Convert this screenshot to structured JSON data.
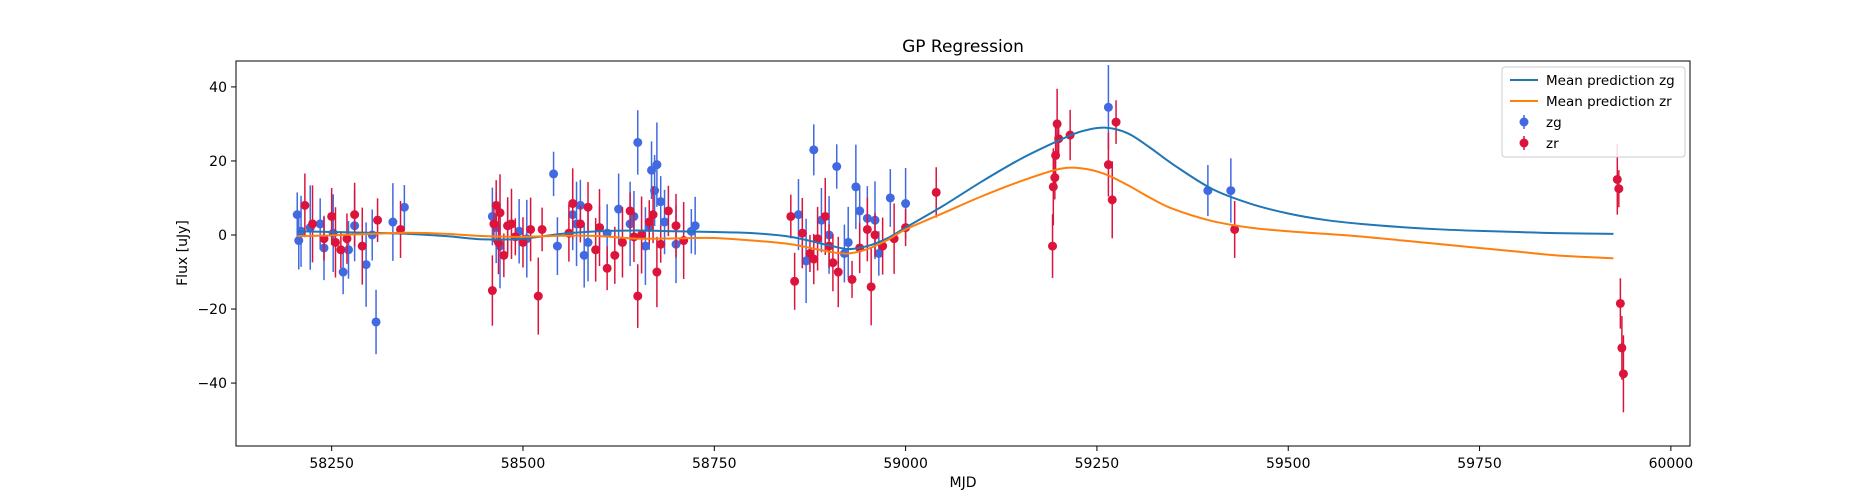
{
  "chart_data": {
    "type": "scatter",
    "title": "GP Regression",
    "xlabel": "MJD",
    "ylabel": "Flux [uJy]",
    "xlim": [
      58125,
      60025
    ],
    "ylim": [
      -57,
      47
    ],
    "xticks": [
      58250,
      58500,
      58750,
      59000,
      59250,
      59500,
      59750,
      60000
    ],
    "yticks": [
      -40,
      -20,
      0,
      20,
      40
    ],
    "grid": false,
    "legend_position": "top-right",
    "colors": {
      "zg_line": "#1f77b4",
      "zr_line": "#ff7f0e",
      "zg_points": "#4169e1",
      "zr_points": "#dc143c"
    },
    "legend": [
      "Mean prediction zg",
      "Mean prediction zr",
      "zg",
      "zr"
    ],
    "lines": [
      {
        "name": "Mean prediction zg",
        "color": "#1f77b4",
        "x": [
          58205,
          58250,
          58300,
          58350,
          58400,
          58450,
          58500,
          58550,
          58600,
          58650,
          58700,
          58750,
          58800,
          58850,
          58900,
          58925,
          58950,
          58975,
          59000,
          59050,
          59100,
          59150,
          59200,
          59230,
          59260,
          59290,
          59320,
          59350,
          59400,
          59450,
          59500,
          59550,
          59600,
          59650,
          59700,
          59750,
          59800,
          59850,
          59925
        ],
        "y": [
          1.0,
          0.8,
          0.6,
          0.3,
          -0.3,
          -1.2,
          -1.0,
          0.3,
          1.0,
          1.2,
          1.0,
          0.8,
          0.5,
          -0.5,
          -2.8,
          -3.8,
          -3.0,
          -1.0,
          2.0,
          8.0,
          14.5,
          20.5,
          25.5,
          28.0,
          29.0,
          27.5,
          23.5,
          19.0,
          12.5,
          8.5,
          5.8,
          4.0,
          2.9,
          2.1,
          1.5,
          1.1,
          0.8,
          0.5,
          0.3
        ]
      },
      {
        "name": "Mean prediction zr",
        "color": "#ff7f0e",
        "x": [
          58205,
          58250,
          58300,
          58350,
          58400,
          58450,
          58500,
          58550,
          58600,
          58650,
          58700,
          58750,
          58800,
          58850,
          58900,
          58925,
          58950,
          58975,
          59000,
          59050,
          59100,
          59150,
          59200,
          59230,
          59260,
          59290,
          59320,
          59350,
          59400,
          59450,
          59500,
          59550,
          59600,
          59650,
          59700,
          59750,
          59800,
          59850,
          59925
        ],
        "y": [
          -0.3,
          -0.1,
          0.3,
          0.6,
          0.3,
          -0.3,
          -0.5,
          -0.2,
          -0.3,
          -1.0,
          -0.9,
          -0.8,
          -1.5,
          -2.5,
          -4.5,
          -5.0,
          -3.8,
          -1.5,
          1.5,
          6.0,
          10.5,
          14.5,
          17.8,
          18.0,
          16.5,
          13.5,
          10.0,
          7.0,
          3.8,
          2.0,
          1.0,
          0.3,
          -0.5,
          -1.5,
          -2.5,
          -3.5,
          -4.5,
          -5.5,
          -6.3
        ]
      }
    ],
    "series": [
      {
        "name": "zg",
        "color": "#4169e1",
        "x": [
          58205,
          58207,
          58210,
          58222,
          58235,
          58240,
          58252,
          58265,
          58272,
          58280,
          58295,
          58303,
          58308,
          58330,
          58345,
          58460,
          58465,
          58470,
          58480,
          58495,
          58505,
          58540,
          58545,
          58565,
          58570,
          58575,
          58580,
          58585,
          58600,
          58610,
          58625,
          58640,
          58645,
          58650,
          58660,
          58665,
          58668,
          58672,
          58675,
          58680,
          58685,
          58700,
          58720,
          58725,
          58860,
          58870,
          58880,
          58890,
          58900,
          58910,
          58920,
          58925,
          58935,
          58940,
          58950,
          58960,
          58965,
          58980,
          59000,
          59265,
          59395,
          59425
        ],
        "y": [
          5.5,
          -1.5,
          1.0,
          2.0,
          3.0,
          -3.5,
          0.5,
          -10.0,
          -4.0,
          2.5,
          -8.0,
          0.0,
          -23.5,
          3.5,
          7.5,
          5.0,
          2.0,
          -3.0,
          2.5,
          1.0,
          -1.0,
          16.5,
          -3.0,
          5.5,
          3.0,
          8.0,
          -5.5,
          -2.0,
          2.0,
          0.5,
          7.0,
          3.0,
          5.0,
          25.0,
          -3.0,
          2.0,
          17.5,
          12.0,
          19.0,
          9.0,
          3.5,
          -2.5,
          1.0,
          2.5,
          5.5,
          -7.0,
          23.0,
          4.0,
          0.0,
          18.5,
          -5.0,
          -2.0,
          13.0,
          6.5,
          4.5,
          4.0,
          -5.0,
          10.0,
          8.5,
          34.5,
          12.0,
          12.0
        ]
      },
      {
        "name": "zr",
        "color": "#dc143c",
        "x": [
          58215,
          58225,
          58240,
          58250,
          58255,
          58262,
          58270,
          58280,
          58290,
          58310,
          58340,
          58460,
          58462,
          58465,
          58468,
          58470,
          58475,
          58480,
          58485,
          58490,
          58500,
          58510,
          58520,
          58525,
          58560,
          58565,
          58575,
          58585,
          58595,
          58600,
          58610,
          58620,
          58630,
          58640,
          58645,
          58650,
          58655,
          58665,
          58670,
          58675,
          58680,
          58690,
          58700,
          58710,
          58850,
          58855,
          58865,
          58875,
          58880,
          58885,
          58895,
          58900,
          58905,
          58912,
          58930,
          58940,
          58950,
          58955,
          58960,
          58970,
          58985,
          59000,
          59040,
          59192,
          59193,
          59195,
          59196,
          59198,
          59200,
          59215,
          59265,
          59270,
          59275,
          59430,
          59930,
          59932,
          59934,
          59936,
          59938
        ],
        "y": [
          8.0,
          3.0,
          -1.0,
          5.0,
          -2.0,
          -4.0,
          -1.0,
          5.5,
          -3.0,
          4.0,
          1.5,
          -15.0,
          3.0,
          8.0,
          -2.0,
          6.0,
          -5.5,
          2.5,
          3.0,
          -0.5,
          -2.0,
          1.5,
          -16.5,
          1.5,
          0.5,
          8.5,
          3.0,
          7.5,
          -4.0,
          2.0,
          -9.0,
          -5.5,
          -2.0,
          6.5,
          -0.5,
          -16.5,
          0.0,
          3.5,
          5.5,
          -10.0,
          -2.5,
          6.5,
          2.5,
          -1.5,
          5.0,
          -12.5,
          0.5,
          -5.0,
          -6.5,
          -1.0,
          5.0,
          -3.0,
          -7.5,
          -10.0,
          -12.0,
          -3.5,
          1.5,
          -14.0,
          0.0,
          -3.0,
          -1.0,
          2.0,
          11.5,
          -3.0,
          13.0,
          15.5,
          21.5,
          30.0,
          26.0,
          27.0,
          19.0,
          9.5,
          30.5,
          1.5,
          15.0,
          12.5,
          -18.5,
          -30.5,
          -37.5
        ]
      }
    ]
  }
}
